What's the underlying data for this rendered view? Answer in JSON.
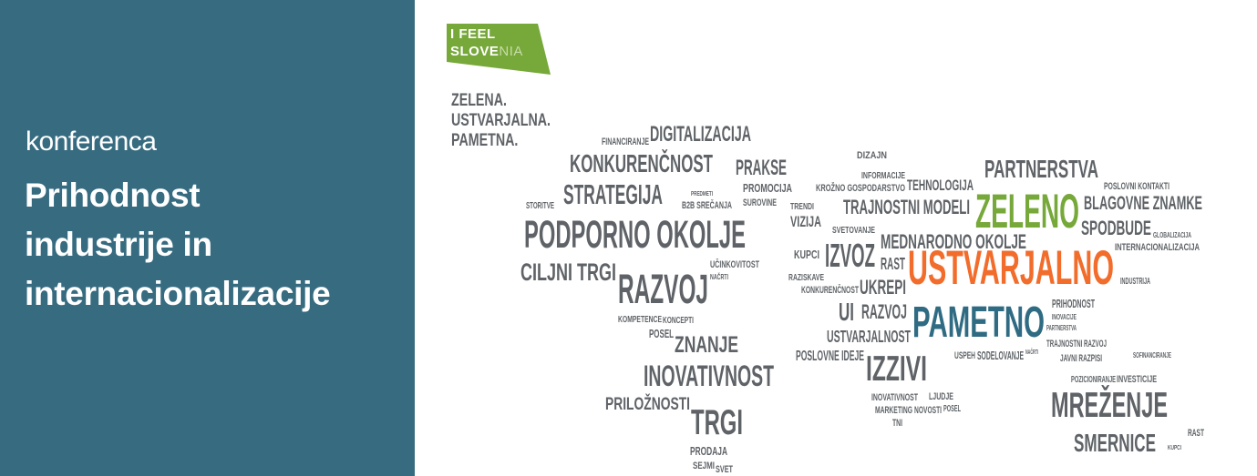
{
  "panel": {
    "background": "#366b80",
    "kicker": "konferenca",
    "title_lines": [
      "Prihodnost",
      "industrije in",
      "internacionalizacije"
    ]
  },
  "logo": {
    "line1": "I FEEL",
    "line2_a": "S",
    "line2_b": "LOVE",
    "line2_c": "NIA",
    "color": "#77a83a"
  },
  "tagline": [
    "ZELENA.",
    "USTVARJALNA.",
    "PAMETNA."
  ],
  "colors": {
    "gray": "#5f6367",
    "green": "#77a83a",
    "orange": "#f26c2b",
    "teal": "#2f6b82"
  },
  "words": [
    {
      "text": "DIGITALIZACIJA",
      "color": "gray"
    },
    {
      "text": "FINANCIRANJE",
      "color": "gray"
    },
    {
      "text": "PRAKSE",
      "color": "gray"
    },
    {
      "text": "KONKURENČNOST",
      "color": "gray"
    },
    {
      "text": "PROMOCIJA",
      "color": "gray"
    },
    {
      "text": "SUROVINE",
      "color": "gray"
    },
    {
      "text": "PREDMETI",
      "color": "gray"
    },
    {
      "text": "STRATEGIJA",
      "color": "gray"
    },
    {
      "text": "STORITVE",
      "color": "gray"
    },
    {
      "text": "B2B SREČANJA",
      "color": "gray"
    },
    {
      "text": "TRENDI",
      "color": "gray"
    },
    {
      "text": "VIZIJA",
      "color": "gray"
    },
    {
      "text": "PODPORNO OKOLJE",
      "color": "gray"
    },
    {
      "text": "CILJNI TRGI",
      "color": "gray"
    },
    {
      "text": "UČINKOVITOST",
      "color": "gray"
    },
    {
      "text": "NAČRTI",
      "color": "gray"
    },
    {
      "text": "KUPCI",
      "color": "gray"
    },
    {
      "text": "RAZVOJ",
      "color": "gray"
    },
    {
      "text": "KOMPETENCE",
      "color": "gray"
    },
    {
      "text": "KONCEPTI",
      "color": "gray"
    },
    {
      "text": "POSEL",
      "color": "gray"
    },
    {
      "text": "ZNANJE",
      "color": "gray"
    },
    {
      "text": "INOVATIVNOST",
      "color": "gray"
    },
    {
      "text": "PRILOŽNOSTI",
      "color": "gray"
    },
    {
      "text": "TRGI",
      "color": "gray"
    },
    {
      "text": "PRODAJA",
      "color": "gray"
    },
    {
      "text": "SEJMI",
      "color": "gray"
    },
    {
      "text": "SVET",
      "color": "gray"
    },
    {
      "text": "DIZAJN",
      "color": "gray"
    },
    {
      "text": "INFORMACIJE",
      "color": "gray"
    },
    {
      "text": "TEHNOLOGIJA",
      "color": "gray"
    },
    {
      "text": "PARTNERSTVA",
      "color": "gray"
    },
    {
      "text": "POSLOVNI KONTAKTI",
      "color": "gray"
    },
    {
      "text": "TRAJNOSTNI MODELI",
      "color": "gray"
    },
    {
      "text": "ZELENO",
      "color": "green"
    },
    {
      "text": "BLAGOVNE ZNAMKE",
      "color": "gray"
    },
    {
      "text": "KROŽNO GOSPODARSTVO",
      "color": "gray"
    },
    {
      "text": "INTERNACIONALIZACIJA",
      "color": "gray"
    },
    {
      "text": "SVETOVANJE",
      "color": "gray"
    },
    {
      "text": "MEDNARODNO OKOLJE",
      "color": "gray"
    },
    {
      "text": "SPODBUDE",
      "color": "gray"
    },
    {
      "text": "GLOBALIZACIJA",
      "color": "gray"
    },
    {
      "text": "IZVOZ",
      "color": "gray"
    },
    {
      "text": "RAST",
      "color": "gray"
    },
    {
      "text": "USTVARJALNO",
      "color": "orange"
    },
    {
      "text": "RAZISKAVE",
      "color": "gray"
    },
    {
      "text": "UKREPI",
      "color": "gray"
    },
    {
      "text": "INDUSTRIJA",
      "color": "gray"
    },
    {
      "text": "KONKURENČNOST",
      "color": "gray"
    },
    {
      "text": "PAMETNO",
      "color": "teal"
    },
    {
      "text": "PRIHODNOST",
      "color": "gray"
    },
    {
      "text": "INOVACIJE",
      "color": "gray"
    },
    {
      "text": "UI",
      "color": "gray"
    },
    {
      "text": "RAZVOJ",
      "color": "gray"
    },
    {
      "text": "USTVARJALNOST",
      "color": "gray"
    },
    {
      "text": "SODELOVANJE",
      "color": "gray"
    },
    {
      "text": "PARTNERSTVA",
      "color": "gray"
    },
    {
      "text": "USPEH",
      "color": "gray"
    },
    {
      "text": "NAČRTI",
      "color": "gray"
    },
    {
      "text": "POSLOVNE IDEJE",
      "color": "gray"
    },
    {
      "text": "TRAJNOSTNI RAZVOJ",
      "color": "gray"
    },
    {
      "text": "IZZIVI",
      "color": "gray"
    },
    {
      "text": "JAVNI RAZPISI",
      "color": "gray"
    },
    {
      "text": "SOFINANCIRANJE",
      "color": "gray"
    },
    {
      "text": "INOVATIVNOST",
      "color": "gray"
    },
    {
      "text": "POZICIONIRANJE",
      "color": "gray"
    },
    {
      "text": "INVESTICIJE",
      "color": "gray"
    },
    {
      "text": "MARKETING",
      "color": "gray"
    },
    {
      "text": "LJUDJE",
      "color": "gray"
    },
    {
      "text": "MREŽENJE",
      "color": "gray"
    },
    {
      "text": "NOVOSTI",
      "color": "gray"
    },
    {
      "text": "POSEL",
      "color": "gray"
    },
    {
      "text": "TNI",
      "color": "gray"
    },
    {
      "text": "SMERNICE",
      "color": "gray"
    },
    {
      "text": "RAST",
      "color": "gray"
    },
    {
      "text": "KUPCI",
      "color": "gray"
    }
  ]
}
